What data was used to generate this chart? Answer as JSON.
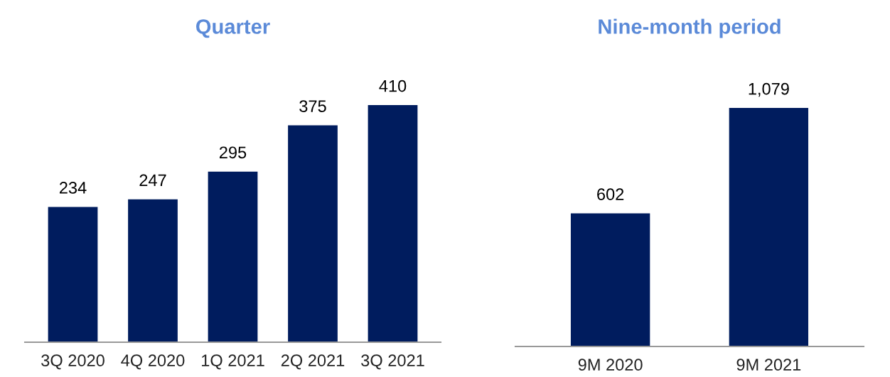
{
  "chart_data": [
    {
      "type": "bar",
      "title": "Quarter",
      "categories": [
        "3Q 2020",
        "4Q 2020",
        "1Q 2021",
        "2Q 2021",
        "3Q 2021"
      ],
      "values": [
        234,
        247,
        295,
        375,
        410
      ],
      "color": "#001c5e",
      "value_labels": [
        "234",
        "247",
        "295",
        "375",
        "410"
      ],
      "tick_labels": "x"
    },
    {
      "type": "bar",
      "title": "Nine-month period",
      "categories": [
        "9M 2020",
        "9M 2021"
      ],
      "values": [
        602,
        1079
      ],
      "color": "#001c5e",
      "value_labels": [
        "602",
        "1,079"
      ],
      "tick_labels": "x"
    }
  ]
}
